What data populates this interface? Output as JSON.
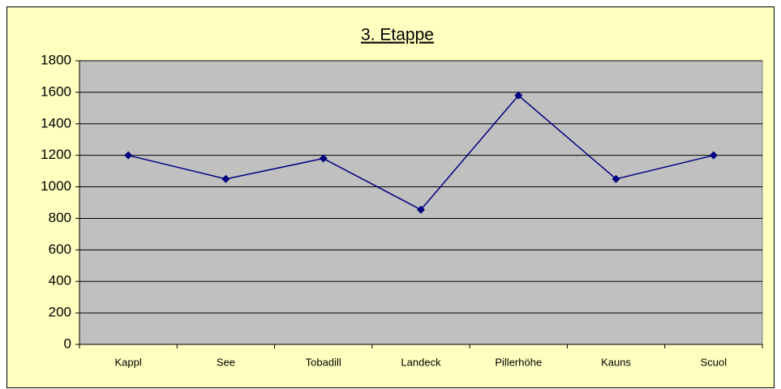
{
  "chart_data": {
    "type": "line",
    "title": "3. Etappe",
    "categories": [
      "Kappl",
      "See",
      "Tobadill",
      "Landeck",
      "Pillerhöhe",
      "Kauns",
      "Scuol"
    ],
    "series": [
      {
        "name": "3. Etappe",
        "color": "#000080",
        "values": [
          1200,
          1050,
          1180,
          855,
          1580,
          1050,
          1200
        ]
      }
    ],
    "ylim": [
      0,
      1800
    ],
    "yticks": [
      0,
      200,
      400,
      600,
      800,
      1000,
      1200,
      1400,
      1600,
      1800
    ],
    "grid": true,
    "plot_color": "#c0c0c0",
    "background": "#ffffc0"
  }
}
